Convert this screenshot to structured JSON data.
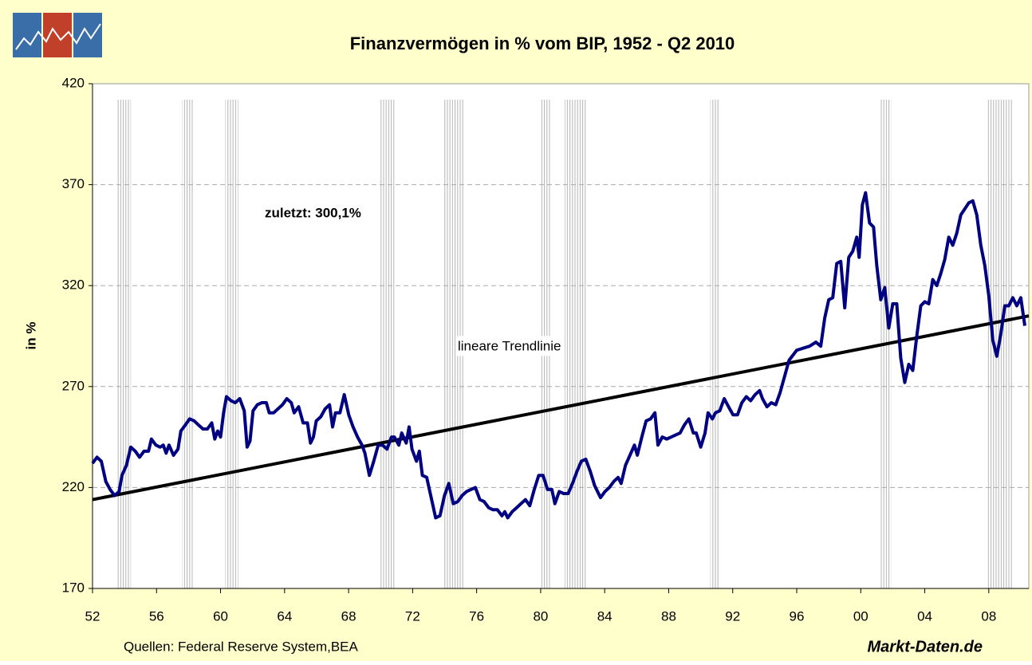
{
  "chart_data": {
    "type": "line",
    "title": "Finanzvermögen in % vom BIP, 1952 - Q2 2010",
    "ylabel": "in %",
    "annotation": "zuletzt: 300,1%",
    "source": "Quellen: Federal Reserve System,BEA",
    "brand": "Markt-Daten.de",
    "xlim": [
      1952,
      2010.5
    ],
    "ylim": [
      170,
      420
    ],
    "yticks": [
      170,
      220,
      270,
      320,
      370,
      420
    ],
    "xticks": [
      {
        "value": 1952,
        "label": "52"
      },
      {
        "value": 1956,
        "label": "56"
      },
      {
        "value": 1960,
        "label": "60"
      },
      {
        "value": 1964,
        "label": "64"
      },
      {
        "value": 1968,
        "label": "68"
      },
      {
        "value": 1972,
        "label": "72"
      },
      {
        "value": 1976,
        "label": "76"
      },
      {
        "value": 1980,
        "label": "80"
      },
      {
        "value": 1984,
        "label": "84"
      },
      {
        "value": 1988,
        "label": "88"
      },
      {
        "value": 1992,
        "label": "92"
      },
      {
        "value": 1996,
        "label": "96"
      },
      {
        "value": 2000,
        "label": "00"
      },
      {
        "value": 2004,
        "label": "04"
      },
      {
        "value": 2008,
        "label": "08"
      }
    ],
    "grid": true,
    "recessions": [
      [
        1953.5,
        1954.4
      ],
      [
        1957.6,
        1958.3
      ],
      [
        1960.3,
        1961.1
      ],
      [
        1969.9,
        1970.9
      ],
      [
        1973.9,
        1975.2
      ],
      [
        1980.0,
        1980.6
      ],
      [
        1981.5,
        1982.9
      ],
      [
        1990.6,
        1991.2
      ],
      [
        2001.2,
        2001.9
      ],
      [
        2007.9,
        2009.5
      ]
    ],
    "trend": {
      "label": "lineare Trendlinie",
      "x": [
        1952,
        2010.5
      ],
      "values": [
        214,
        305
      ],
      "color": "#000000"
    },
    "x": [
      1952.0,
      1952.28,
      1952.55,
      1952.83,
      1953.1,
      1953.38,
      1953.66,
      1953.84,
      1954.12,
      1954.39,
      1954.67,
      1954.94,
      1955.22,
      1955.5,
      1955.68,
      1955.96,
      1956.23,
      1956.42,
      1956.6,
      1956.78,
      1957.06,
      1957.34,
      1957.52,
      1957.8,
      1958.07,
      1958.35,
      1958.62,
      1958.9,
      1959.18,
      1959.45,
      1959.64,
      1959.82,
      1960.0,
      1960.19,
      1960.37,
      1960.65,
      1960.92,
      1961.2,
      1961.48,
      1961.66,
      1961.84,
      1962.03,
      1962.3,
      1962.58,
      1962.86,
      1963.04,
      1963.32,
      1963.59,
      1963.87,
      1964.14,
      1964.42,
      1964.6,
      1964.88,
      1965.16,
      1965.43,
      1965.62,
      1965.8,
      1965.98,
      1966.26,
      1966.54,
      1966.81,
      1967.0,
      1967.18,
      1967.46,
      1967.73,
      1968.01,
      1968.28,
      1968.56,
      1968.84,
      1969.02,
      1969.3,
      1969.57,
      1969.85,
      1970.12,
      1970.4,
      1970.68,
      1970.86,
      1971.14,
      1971.32,
      1971.6,
      1971.78,
      1971.96,
      1972.24,
      1972.42,
      1972.61,
      1972.88,
      1973.16,
      1973.44,
      1973.71,
      1973.99,
      1974.26,
      1974.54,
      1974.82,
      1975.09,
      1975.37,
      1975.64,
      1975.92,
      1976.2,
      1976.47,
      1976.75,
      1977.02,
      1977.3,
      1977.58,
      1977.76,
      1977.94,
      1978.22,
      1978.5,
      1978.77,
      1979.05,
      1979.32,
      1979.6,
      1979.88,
      1980.15,
      1980.43,
      1980.7,
      1980.89,
      1981.16,
      1981.44,
      1981.72,
      1981.99,
      1982.27,
      1982.54,
      1982.82,
      1983.1,
      1983.37,
      1983.74,
      1984.02,
      1984.29,
      1984.57,
      1984.84,
      1985.03,
      1985.3,
      1985.58,
      1985.86,
      1986.04,
      1986.32,
      1986.59,
      1986.87,
      1987.14,
      1987.33,
      1987.6,
      1987.88,
      1988.16,
      1988.43,
      1988.71,
      1988.98,
      1989.26,
      1989.54,
      1989.72,
      1990.0,
      1990.27,
      1990.46,
      1990.73,
      1990.92,
      1991.19,
      1991.47,
      1991.74,
      1992.02,
      1992.3,
      1992.57,
      1992.85,
      1993.12,
      1993.4,
      1993.68,
      1993.86,
      1994.14,
      1994.41,
      1994.69,
      1994.96,
      1995.24,
      1995.52,
      1996.0,
      1996.4,
      1996.8,
      1997.2,
      1997.5,
      1997.75,
      1998.0,
      1998.25,
      1998.5,
      1998.75,
      1999.0,
      1999.25,
      1999.5,
      1999.75,
      1999.9,
      2000.1,
      2000.3,
      2000.55,
      2000.8,
      2001.0,
      2001.25,
      2001.5,
      2001.75,
      2002.0,
      2002.25,
      2002.5,
      2002.75,
      2003.0,
      2003.25,
      2003.5,
      2003.75,
      2004.0,
      2004.25,
      2004.5,
      2004.75,
      2005.0,
      2005.25,
      2005.5,
      2005.75,
      2006.0,
      2006.25,
      2006.5,
      2006.75,
      2007.0,
      2007.25,
      2007.5,
      2007.75,
      2008.0,
      2008.25,
      2008.5,
      2008.75,
      2009.0,
      2009.25,
      2009.5,
      2009.75,
      2010.0,
      2010.25
    ],
    "series": [
      {
        "color": "#000080",
        "values": [
          232,
          235,
          233,
          223,
          219,
          216,
          218,
          226,
          231,
          240,
          238,
          235,
          238,
          238,
          244,
          241,
          240,
          241,
          237,
          241,
          236,
          239,
          248,
          251,
          254,
          253,
          251,
          249,
          249,
          252,
          244,
          248,
          245,
          257,
          265,
          263,
          262,
          264,
          258,
          240,
          243,
          258,
          261,
          262,
          262,
          257,
          257,
          259,
          261,
          264,
          262,
          257,
          260,
          252,
          252,
          242,
          245,
          253,
          255,
          259,
          261,
          250,
          257,
          257,
          266,
          256,
          250,
          245,
          241,
          237,
          226,
          233,
          241,
          241,
          239,
          245,
          245,
          241,
          247,
          242,
          250,
          239,
          233,
          238,
          226,
          225,
          215,
          205,
          206,
          216,
          222,
          212,
          213,
          216,
          218,
          219,
          220,
          214,
          213,
          210,
          209,
          209,
          206,
          208,
          205,
          208,
          210,
          212,
          214,
          211,
          219,
          226,
          226,
          219,
          219,
          212,
          218,
          217,
          217,
          222,
          228,
          233,
          234,
          228,
          221,
          215,
          218,
          220,
          223,
          225,
          222,
          231,
          236,
          241,
          236,
          245,
          253,
          254,
          257,
          241,
          245,
          244,
          245,
          246,
          247,
          251,
          254,
          247,
          247,
          240,
          247,
          257,
          254,
          257,
          258,
          264,
          260,
          256,
          256,
          262,
          265,
          263,
          266,
          268,
          264,
          260,
          262,
          261,
          267,
          275,
          283,
          288,
          289,
          290,
          292,
          290,
          304,
          313,
          314,
          331,
          332,
          309,
          334,
          337,
          344,
          334,
          360,
          366,
          351,
          349,
          330,
          313,
          319,
          299,
          311,
          311,
          284,
          272,
          281,
          278,
          295,
          310,
          312,
          311,
          323,
          320,
          326,
          333,
          344,
          340,
          346,
          355,
          358,
          361,
          362,
          355,
          340,
          330,
          315,
          293,
          285,
          296,
          310,
          310,
          314,
          310,
          314,
          300.1
        ]
      }
    ]
  }
}
